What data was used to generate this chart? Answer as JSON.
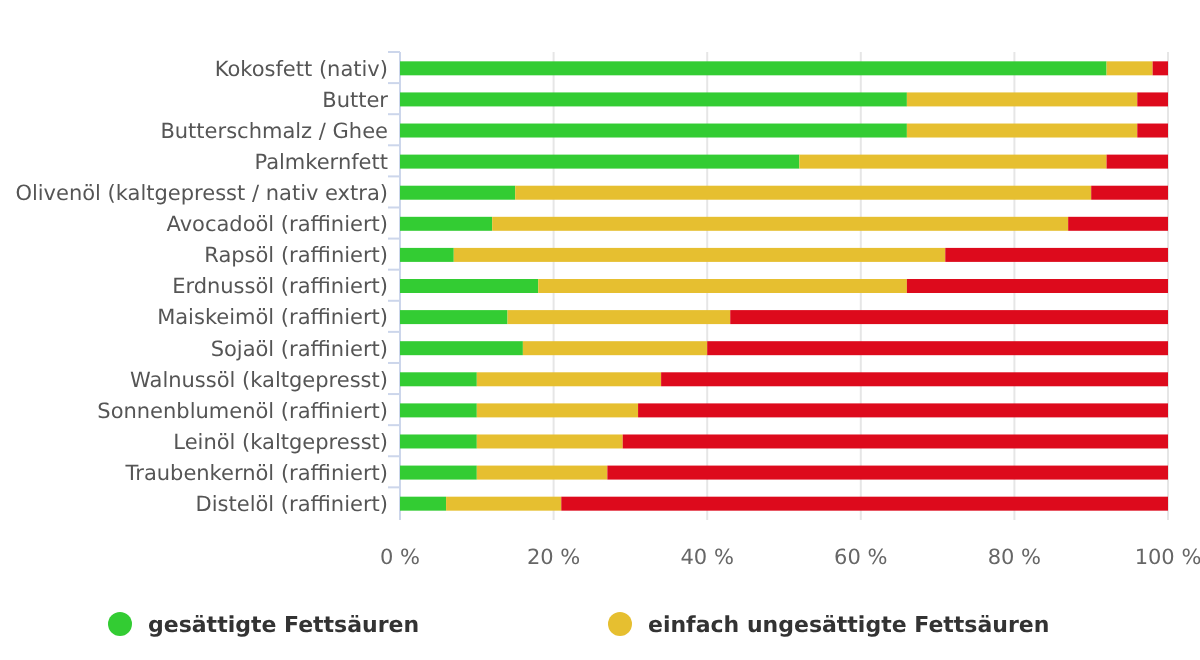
{
  "chart_data": {
    "type": "bar",
    "orientation": "horizontal",
    "stacked": true,
    "categories": [
      "Kokosfett (nativ)",
      "Butter",
      "Butterschmalz / Ghee",
      "Palmkernfett",
      "Olivenöl (kaltgepresst / nativ extra)",
      "Avocadoöl (raffiniert)",
      "Rapsöl (raffiniert)",
      "Erdnussöl (raffiniert)",
      "Maiskeimöl (raffiniert)",
      "Sojaöl (raffiniert)",
      "Walnussöl (kaltgepresst)",
      "Sonnenblumenöl (raffiniert)",
      "Leinöl (kaltgepresst)",
      "Traubenkernöl (raffiniert)",
      "Distelöl (raffiniert)"
    ],
    "series": [
      {
        "name": "gesättigte Fettsäuren",
        "color": "#33cc33",
        "values": [
          92,
          66,
          66,
          52,
          15,
          12,
          7,
          18,
          14,
          16,
          10,
          10,
          10,
          10,
          6
        ]
      },
      {
        "name": "einfach ungesättigte Fettsäuren",
        "color": "#e6bf30",
        "values": [
          6,
          30,
          30,
          40,
          75,
          75,
          64,
          48,
          29,
          24,
          24,
          21,
          19,
          17,
          15
        ]
      },
      {
        "color": "#dd0a1c",
        "values": [
          2,
          4,
          4,
          8,
          10,
          13,
          29,
          34,
          57,
          60,
          66,
          69,
          71,
          73,
          79
        ]
      }
    ],
    "xlim": [
      0,
      100
    ],
    "xticks": [
      {
        "value": 0,
        "label": "0 %"
      },
      {
        "value": 20,
        "label": "20 %"
      },
      {
        "value": 40,
        "label": "40 %"
      },
      {
        "value": 60,
        "label": "60 %"
      },
      {
        "value": 80,
        "label": "80 %"
      },
      {
        "value": 100,
        "label": "100 %"
      }
    ],
    "grid": "x",
    "legend": "bottom"
  }
}
